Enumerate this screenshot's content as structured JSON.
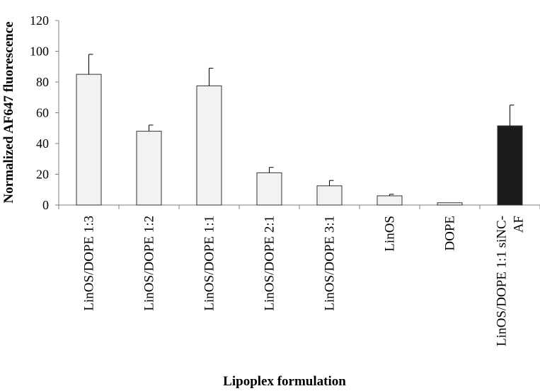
{
  "chart_data": {
    "type": "bar",
    "title": "",
    "xlabel": "Lipoplex formulation",
    "ylabel": "Normalized AF647 fluorescence",
    "ylim": [
      0,
      120
    ],
    "yticks": [
      0,
      20,
      40,
      60,
      80,
      100,
      120
    ],
    "grid": false,
    "categories": [
      [
        "LinOS/DOPE 1:3"
      ],
      [
        "LinOS/DOPE 1:2"
      ],
      [
        "LinOS/DOPE 1:1"
      ],
      [
        "LinOS/DOPE 2:1"
      ],
      [
        "LinOS/DOPE 3:1"
      ],
      [
        "LinOS"
      ],
      [
        "DOPE"
      ],
      [
        "LinOS/DOPE 1:1 siNC-",
        "AF"
      ]
    ],
    "values": [
      85,
      48,
      77.5,
      21,
      12.5,
      6,
      1.5,
      51.5
    ],
    "errors": [
      13,
      4,
      11.5,
      3.5,
      3.5,
      1,
      0,
      13.5
    ],
    "bar_colors": [
      "#f2f2f2",
      "#f2f2f2",
      "#f2f2f2",
      "#f2f2f2",
      "#f2f2f2",
      "#f2f2f2",
      "#f2f2f2",
      "#1a1a1a"
    ],
    "axis_color": "#808080"
  }
}
